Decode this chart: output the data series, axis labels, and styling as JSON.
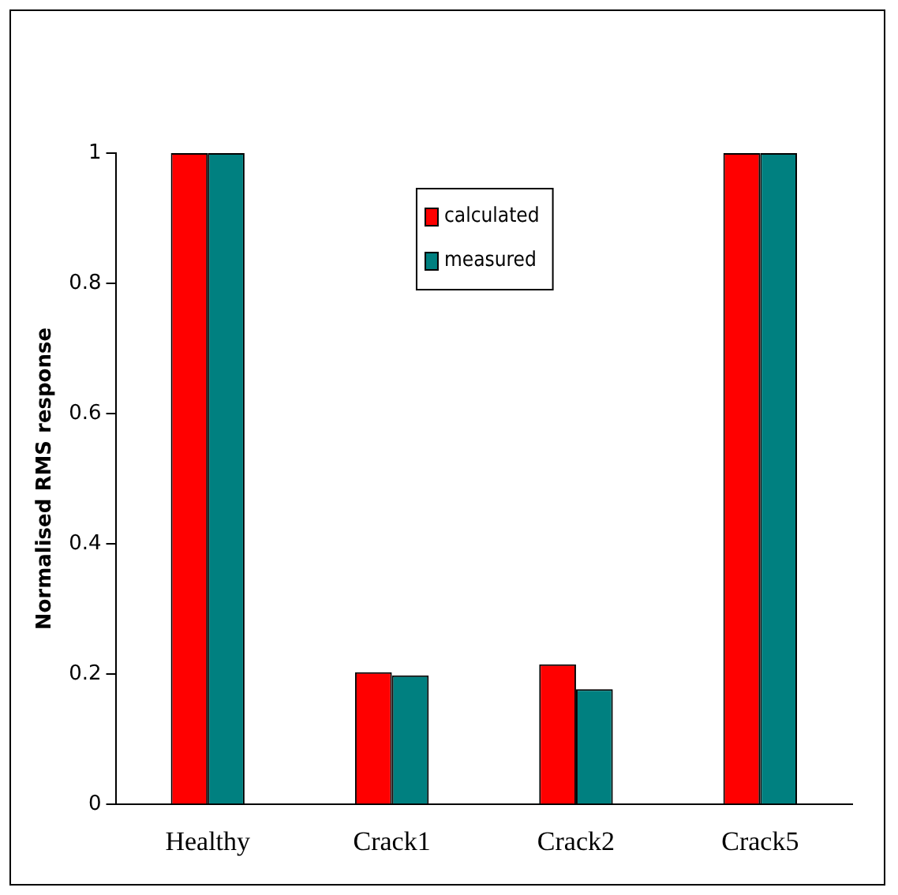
{
  "chart_data": {
    "type": "bar",
    "ylabel": "Normalised RMS response",
    "categories": [
      "Healthy",
      "Crack1",
      "Crack2",
      "Crack5"
    ],
    "series": [
      {
        "name": "calculated",
        "color": "#ff0000",
        "values": [
          1,
          0.203,
          0.215,
          1
        ]
      },
      {
        "name": "measured",
        "color": "#008080",
        "values": [
          1,
          0.198,
          0.177,
          1
        ]
      }
    ],
    "ylim": [
      0,
      1
    ],
    "yticks": [
      0,
      0.2,
      0.4,
      0.6,
      0.8,
      1
    ],
    "grid": false,
    "legend": "top"
  }
}
